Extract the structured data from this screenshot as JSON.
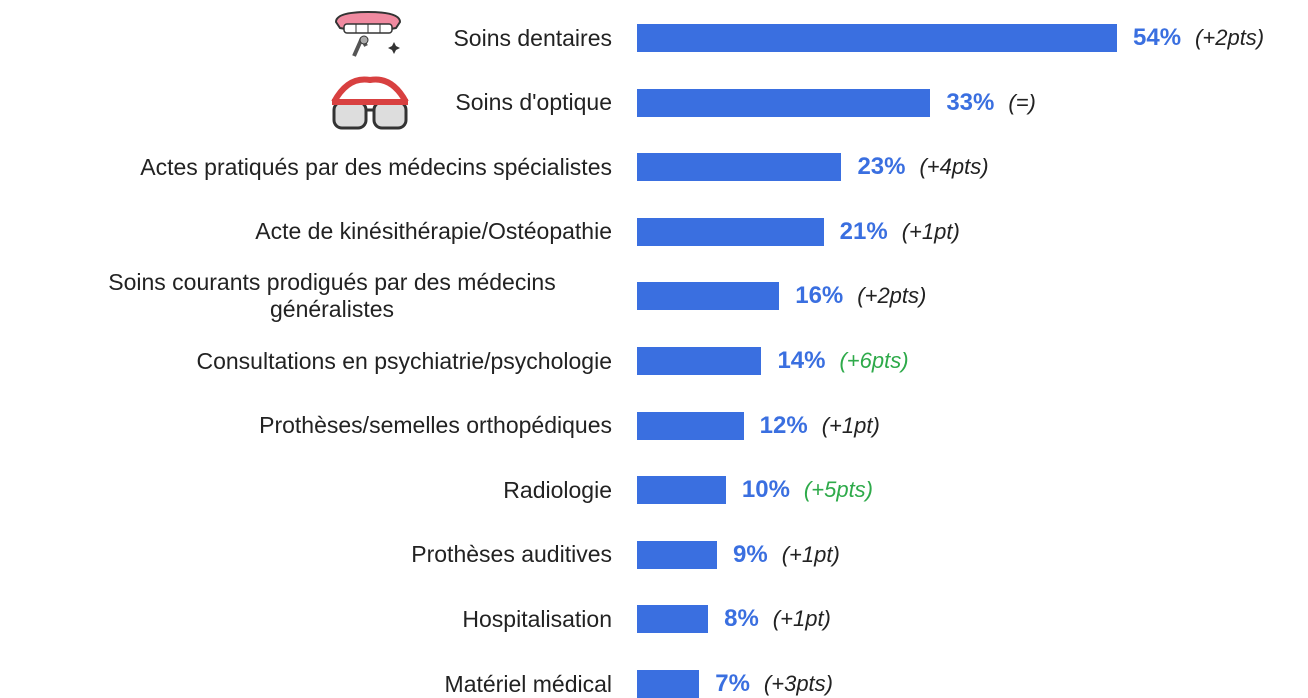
{
  "chart_data": {
    "type": "bar",
    "orientation": "horizontal",
    "categories": [
      "Soins dentaires",
      "Soins d'optique",
      "Actes pratiqués par des médecins spécialistes",
      "Acte de kinésithérapie/Ostéopathie",
      "Soins courants prodigués par des médecins généralistes",
      "Consultations en psychiatrie/psychologie",
      "Prothèses/semelles orthopédiques",
      "Radiologie",
      "Prothèses auditives",
      "Hospitalisation",
      "Matériel médical"
    ],
    "values": [
      54,
      33,
      23,
      21,
      16,
      14,
      12,
      10,
      9,
      8,
      7
    ],
    "value_labels": [
      "54%",
      "33%",
      "23%",
      "21%",
      "16%",
      "14%",
      "12%",
      "10%",
      "9%",
      "8%",
      "7%"
    ],
    "changes": [
      "(+2pts)",
      "(=)",
      "(+4pts)",
      "(+1pt)",
      "(+2pts)",
      "(+6pts)",
      "(+1pt)",
      "(+5pts)",
      "(+1pt)",
      "(+1pt)",
      "(+3pts)"
    ],
    "change_colors": [
      "#222222",
      "#222222",
      "#222222",
      "#222222",
      "#222222",
      "#2eaa4a",
      "#222222",
      "#2eaa4a",
      "#222222",
      "#222222",
      "#222222"
    ],
    "color": "#3a6fe0"
  }
}
